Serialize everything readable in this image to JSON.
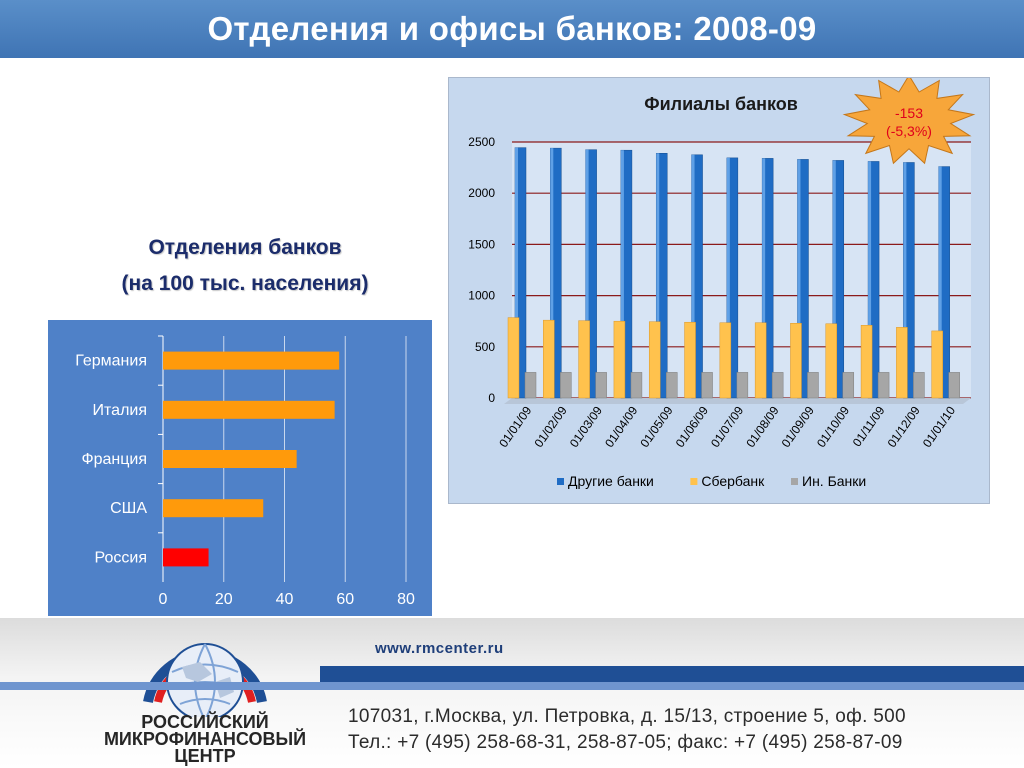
{
  "title": "Отделения и офисы банков: 2008-09",
  "left_heading": {
    "line1": "Отделения банков",
    "line2": "(на 100 тыс. населения)"
  },
  "chart_data": [
    {
      "type": "bar",
      "orientation": "horizontal",
      "title": "",
      "categories": [
        "Германия",
        "Италия",
        "Франция",
        "США",
        "Россия"
      ],
      "values": [
        58,
        56.5,
        44,
        33,
        15
      ],
      "xlim": [
        0,
        80
      ],
      "xticks": [
        "0",
        "20",
        "40",
        "60",
        "80"
      ],
      "colors": [
        "#FF9A0B",
        "#FF9A0B",
        "#FF9A0B",
        "#FF9A0B",
        "#FF0000"
      ],
      "grid": true
    },
    {
      "type": "bar",
      "title": "Филиалы банков",
      "categories": [
        "01/01/09",
        "01/02/09",
        "01/03/09",
        "01/04/09",
        "01/05/09",
        "01/06/09",
        "01/07/09",
        "01/08/09",
        "01/09/09",
        "01/10/09",
        "01/11/09",
        "01/12/09",
        "01/01/10"
      ],
      "series": [
        {
          "name": "Другие банки",
          "color": "#1F6CC4",
          "values": [
            2445,
            2440,
            2425,
            2420,
            2390,
            2375,
            2345,
            2340,
            2330,
            2320,
            2310,
            2300,
            2260
          ]
        },
        {
          "name": "Сбербанк",
          "color": "#FFC24D",
          "values": [
            785,
            760,
            755,
            750,
            745,
            740,
            735,
            735,
            730,
            725,
            710,
            690,
            655
          ]
        },
        {
          "name": "Ин. Банки",
          "color": "#A6A6A6",
          "values": [
            250,
            250,
            250,
            250,
            250,
            250,
            250,
            250,
            250,
            250,
            250,
            250,
            250
          ]
        }
      ],
      "ylim": [
        0,
        2500
      ],
      "yticks": [
        "0",
        "500",
        "1000",
        "1500",
        "2000",
        "2500"
      ],
      "grid": true,
      "legend": "bottom",
      "annotation": {
        "line1": "-153",
        "line2": "(-5,3%)"
      }
    }
  ],
  "footer": {
    "url": "www.rmcenter.ru",
    "address_line1": "107031, г.Москва, ул. Петровка, д. 15/13, строение 5, оф. 500",
    "address_line2": "Тел.: +7 (495) 258-68-31, 258-87-05; факс: +7 (495) 258-87-09",
    "logo_line1": "РОССИЙСКИЙ",
    "logo_line2": "МИКРОФИНАНСОВЫЙ",
    "logo_line3": "ЦЕНТР"
  }
}
